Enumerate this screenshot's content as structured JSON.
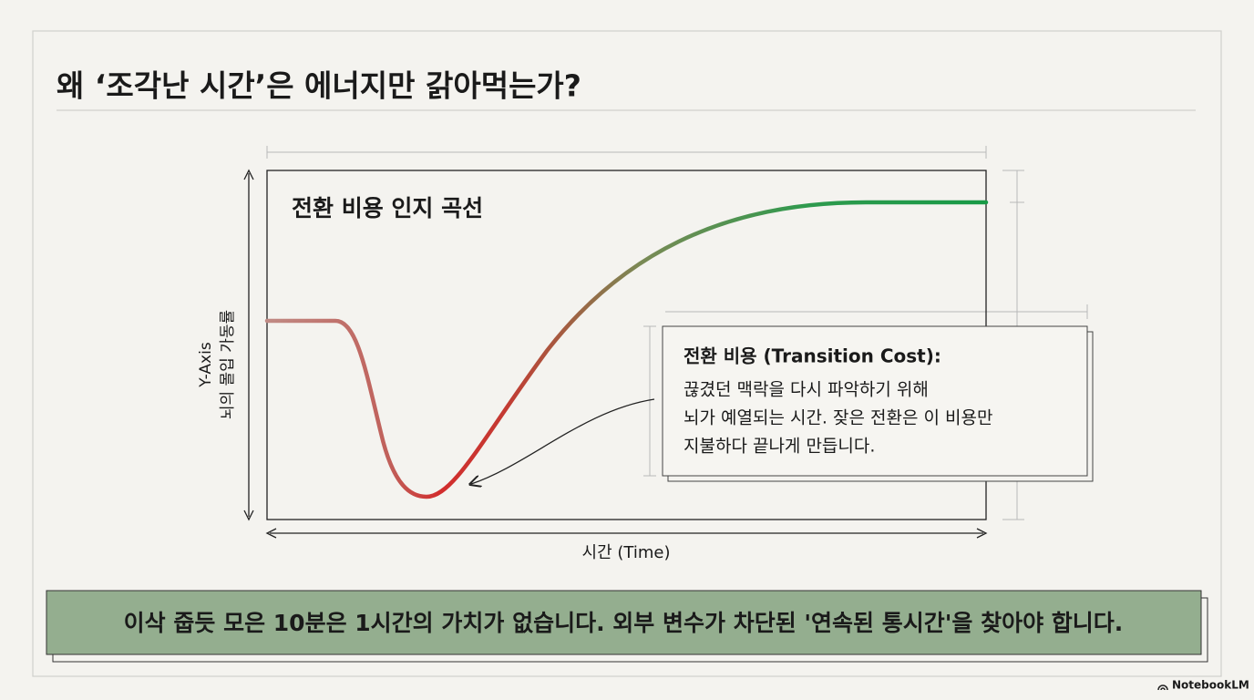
{
  "title": "왜 ‘조각난 시간’은 에너지만 갉아먹는가?",
  "figure": {
    "heading": "전환 비용 인지 곡선",
    "y_axis": [
      "Y-Axis",
      "뇌의 몰입 가동률"
    ],
    "x_axis": "시간 (Time)",
    "callout": {
      "title": "전환 비용 (Transition Cost):",
      "lines": [
        "끊겼던 맥락을 다시 파악하기 위해",
        "뇌가 예열되는 시간. 잦은 전환은 이 비용만",
        "지불하다 끝나게 만듭니다."
      ]
    }
  },
  "banner": "이삭 줍듯 모은 10분은 1시간의 가치가 없습니다. 외부 변수가 차단된 '연속된 통시간'을 찾아야 합니다.",
  "brand": "NotebookLM"
}
